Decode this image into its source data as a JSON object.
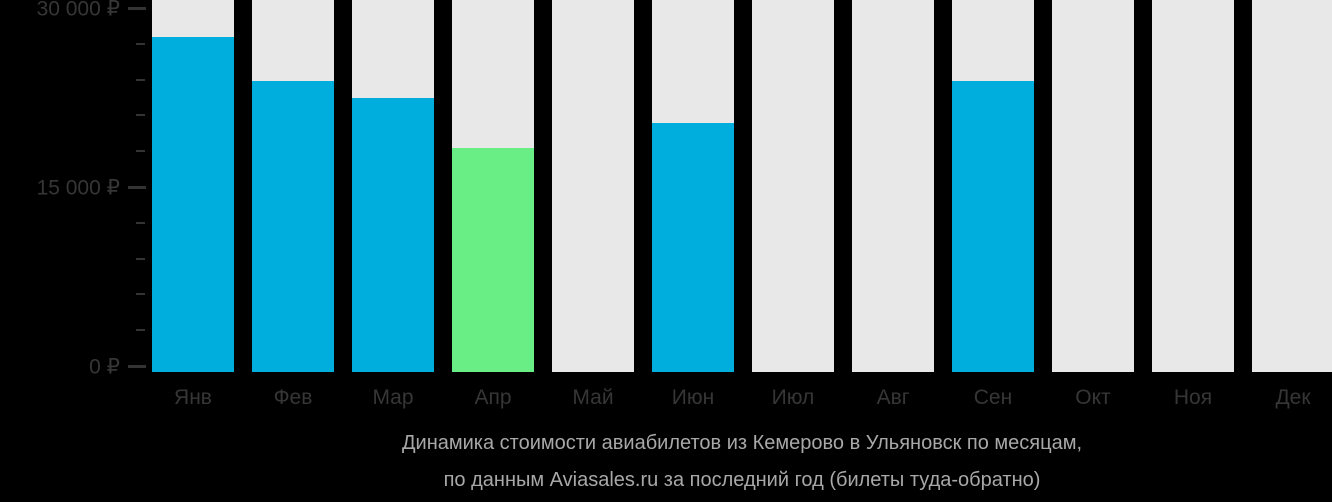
{
  "chart_data": {
    "type": "bar",
    "title_line1": "Динамика стоимости авиабилетов из Кемерово в Ульяновск по месяцам,",
    "title_line2": "по данным Aviasales.ru за последний год (билеты туда-обратно)",
    "categories": [
      "Янв",
      "Фев",
      "Мар",
      "Апр",
      "Май",
      "Июн",
      "Июл",
      "Авг",
      "Сен",
      "Окт",
      "Ноя",
      "Дек"
    ],
    "values": [
      27600,
      23900,
      22500,
      18300,
      null,
      20400,
      null,
      null,
      23900,
      null,
      null,
      null
    ],
    "bar_styles": [
      "primary",
      "primary",
      "primary",
      "highlight",
      null,
      "primary",
      null,
      null,
      "primary",
      null,
      null,
      null
    ],
    "y_tick_labels": [
      {
        "value": 30000,
        "label": "30 000 ₽"
      },
      {
        "value": 15000,
        "label": "15 000 ₽"
      },
      {
        "value": 0,
        "label": "0 ₽"
      }
    ],
    "ylim": [
      0,
      30000
    ],
    "minor_tick_step": 3000,
    "grid": "off",
    "legend": "none",
    "xlabel": "",
    "ylabel": ""
  },
  "colors": {
    "bar_primary": "#00aedd",
    "bar_highlight": "#69ee85",
    "bar_empty": "#e9e8e8",
    "axis_text": "#363636",
    "tick_mark": "#333333",
    "title_text": "#a8a8a8",
    "background": "#000000"
  }
}
